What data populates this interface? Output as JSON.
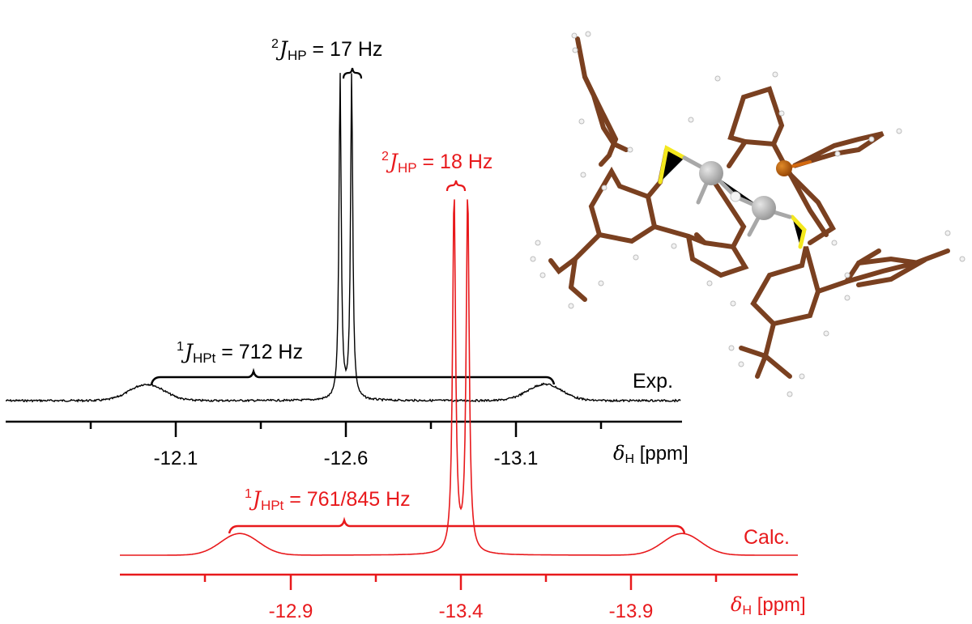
{
  "colors": {
    "experimental": "#000000",
    "calculated": "#e8191c"
  },
  "experimental": {
    "label": "Exp.",
    "axis_label_symbol": "δ",
    "axis_label_sub": "H",
    "axis_label_unit": "[ppm]",
    "ticks": [
      "-12.1",
      "-12.6",
      "-13.1"
    ],
    "coupling_2J": {
      "sup": "2",
      "sym": "J",
      "sub": "HP",
      "value": "= 17 Hz"
    },
    "coupling_1J": {
      "sup": "1",
      "sym": "J",
      "sub": "HPt",
      "value": "= 712 Hz"
    }
  },
  "calculated": {
    "label": "Calc.",
    "axis_label_symbol": "δ",
    "axis_label_sub": "H",
    "axis_label_unit": "[ppm]",
    "ticks": [
      "-12.9",
      "-13.4",
      "-13.9"
    ],
    "coupling_2J": {
      "sup": "2",
      "sym": "J",
      "sub": "HP",
      "value": "= 18 Hz"
    },
    "coupling_1J": {
      "sup": "1",
      "sym": "J",
      "sub": "HPt",
      "value": "= 761/845 Hz"
    }
  },
  "molecule": {
    "description": "ball-and-stick model of diplatinum hydride complex with P and S ligands"
  },
  "chart_data": [
    {
      "type": "line",
      "title": "Experimental 1H NMR hydride signal",
      "series_label": "Exp.",
      "xlabel": "δH [ppm]",
      "x_ticks_major": [
        -12.1,
        -12.6,
        -13.1
      ],
      "x_ticks_minor": [
        -11.85,
        -12.35,
        -12.85,
        -13.35
      ],
      "xlim": [
        -11.6,
        -13.6
      ],
      "x_reversed": true,
      "grid": false,
      "peaks": [
        {
          "shift": -12.015,
          "rel_height": 0.05,
          "note": "Pt satellite"
        },
        {
          "shift": -12.583,
          "rel_height": 1.0,
          "note": "doublet line 1"
        },
        {
          "shift": -12.617,
          "rel_height": 1.0,
          "note": "doublet line 2"
        },
        {
          "shift": -13.185,
          "rel_height": 0.05,
          "note": "Pt satellite"
        }
      ],
      "annotations": [
        "2J_HP = 17 Hz",
        "1J_HPt = 712 Hz"
      ]
    },
    {
      "type": "line",
      "title": "Calculated 1H NMR hydride signal",
      "series_label": "Calc.",
      "xlabel": "δH [ppm]",
      "x_ticks_major": [
        -12.9,
        -13.4,
        -13.9
      ],
      "x_ticks_minor": [
        -12.65,
        -13.15,
        -13.65,
        -14.15
      ],
      "xlim": [
        -12.4,
        -14.4
      ],
      "x_reversed": true,
      "grid": false,
      "peaks": [
        {
          "shift": -12.75,
          "rel_height": 0.06,
          "note": "Pt satellite"
        },
        {
          "shift": -13.38,
          "rel_height": 1.0,
          "note": "doublet line 1"
        },
        {
          "shift": -13.42,
          "rel_height": 1.0,
          "note": "doublet line 2"
        },
        {
          "shift": -14.05,
          "rel_height": 0.06,
          "note": "Pt satellite"
        }
      ],
      "annotations": [
        "2J_HP = 18 Hz",
        "1J_HPt = 761/845 Hz"
      ]
    }
  ]
}
